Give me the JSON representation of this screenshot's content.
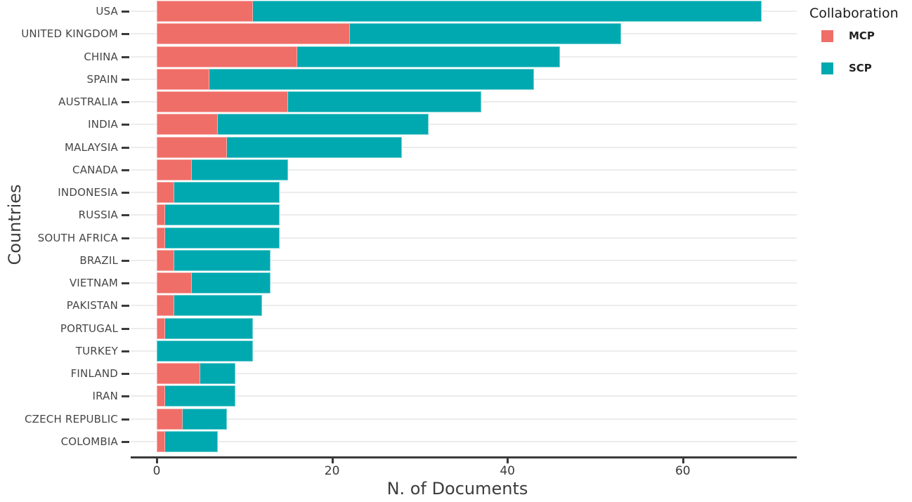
{
  "chart_data": {
    "type": "bar",
    "orientation": "horizontal",
    "stacked": true,
    "xlabel": "N. of Documents",
    "ylabel": "Countries",
    "legend_title": "Collaboration",
    "legend_position": "top-right",
    "grid": "horizontal-only",
    "xlim": [
      0,
      73
    ],
    "xticks": [
      0,
      20,
      40,
      60
    ],
    "categories": [
      "USA",
      "UNITED KINGDOM",
      "CHINA",
      "SPAIN",
      "AUSTRALIA",
      "INDIA",
      "MALAYSIA",
      "CANADA",
      "INDONESIA",
      "RUSSIA",
      "SOUTH AFRICA",
      "BRAZIL",
      "VIETNAM",
      "PAKISTAN",
      "PORTUGAL",
      "TURKEY",
      "FINLAND",
      "IRAN",
      "CZECH REPUBLIC",
      "COLOMBIA"
    ],
    "series": [
      {
        "name": "MCP",
        "color": "#EF6E68",
        "values": [
          11,
          22,
          16,
          6,
          15,
          7,
          8,
          4,
          2,
          1,
          1,
          2,
          4,
          2,
          1,
          0,
          5,
          1,
          3,
          1
        ]
      },
      {
        "name": "SCP",
        "color": "#00A9B0",
        "values": [
          58,
          31,
          30,
          37,
          22,
          24,
          20,
          11,
          12,
          13,
          13,
          11,
          9,
          10,
          10,
          11,
          4,
          8,
          5,
          6
        ]
      }
    ],
    "totals": [
      69,
      53,
      46,
      43,
      37,
      31,
      28,
      15,
      14,
      14,
      14,
      13,
      13,
      12,
      11,
      11,
      9,
      9,
      8,
      7
    ],
    "axis_color": "#3a3a3a",
    "gridline_color": "#ececec"
  }
}
